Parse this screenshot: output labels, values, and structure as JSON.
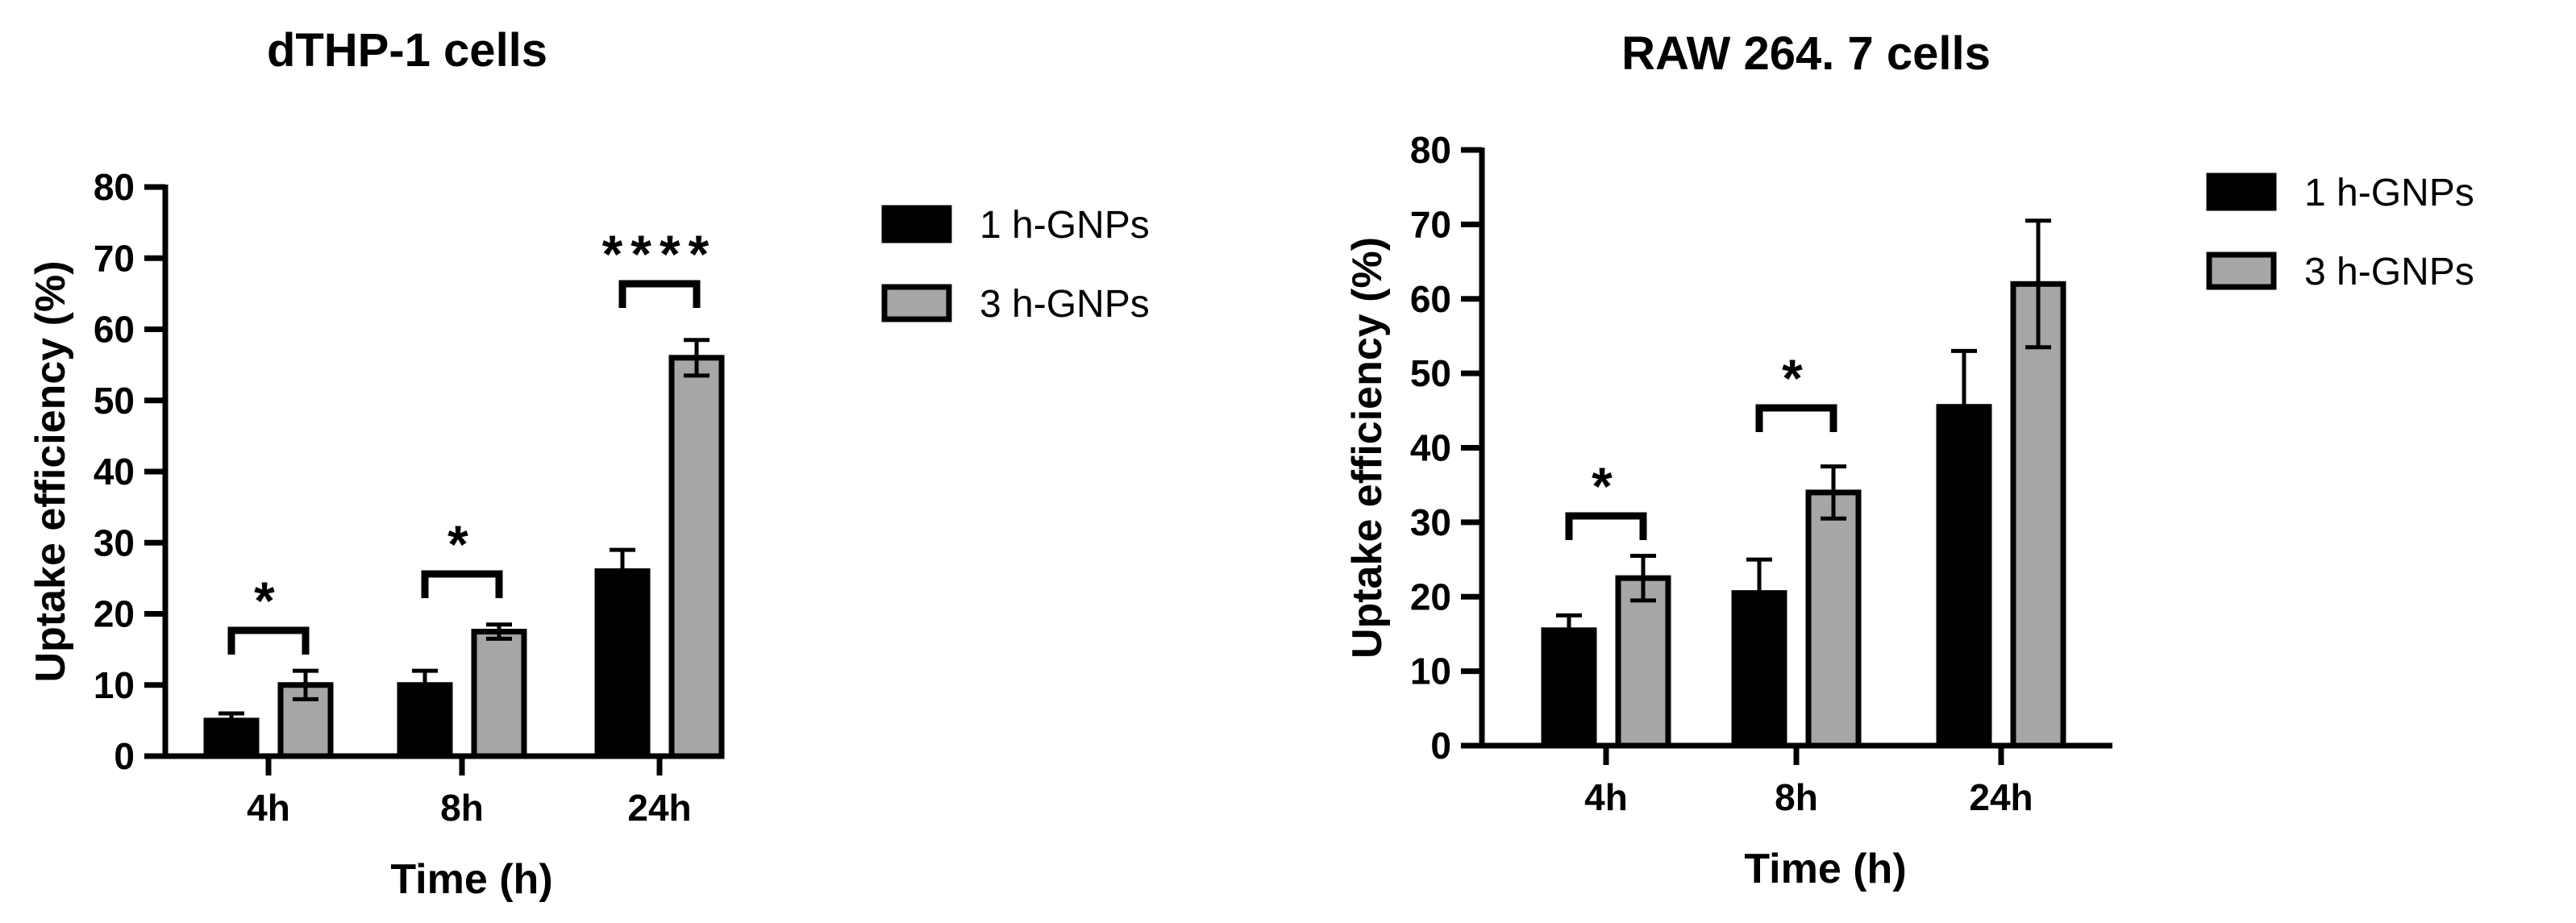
{
  "chart_data": [
    {
      "type": "bar",
      "title": "dTHP-1 cells",
      "xlabel": "Time (h)",
      "ylabel": "Uptake efficiency (%)",
      "ylim": [
        0,
        80
      ],
      "yticks": [
        0,
        10,
        20,
        30,
        40,
        50,
        60,
        70,
        80
      ],
      "categories": [
        "4h",
        "8h",
        "24h"
      ],
      "series": [
        {
          "name": "1 h-GNPs",
          "values": [
            5,
            10,
            26
          ],
          "errors": [
            1,
            2,
            3
          ],
          "color": "#000000"
        },
        {
          "name": "3 h-GNPs",
          "values": [
            10,
            17.5,
            56
          ],
          "errors": [
            2,
            1,
            2.5
          ],
          "color": "#a6a6a6"
        }
      ],
      "significance": [
        {
          "category": "4h",
          "label": "*"
        },
        {
          "category": "8h",
          "label": "*"
        },
        {
          "category": "24h",
          "label": "****"
        }
      ],
      "legend_position": "top-right",
      "grid": false
    },
    {
      "type": "bar",
      "title": "RAW 264. 7 cells",
      "xlabel": "Time (h)",
      "ylabel": "Uptake efficiency (%)",
      "ylim": [
        0,
        80
      ],
      "yticks": [
        0,
        10,
        20,
        30,
        40,
        50,
        60,
        70,
        80
      ],
      "categories": [
        "4h",
        "8h",
        "24h"
      ],
      "series": [
        {
          "name": "1 h-GNPs",
          "values": [
            15.5,
            20.5,
            45.5
          ],
          "errors": [
            2,
            4.5,
            7.5
          ],
          "color": "#000000"
        },
        {
          "name": "3 h-GNPs",
          "values": [
            22.5,
            34,
            62
          ],
          "errors": [
            3,
            3.5,
            8.5
          ],
          "color": "#a6a6a6"
        }
      ],
      "significance": [
        {
          "category": "4h",
          "label": "*"
        },
        {
          "category": "8h",
          "label": "*"
        }
      ],
      "legend_position": "top-right",
      "grid": false
    }
  ]
}
